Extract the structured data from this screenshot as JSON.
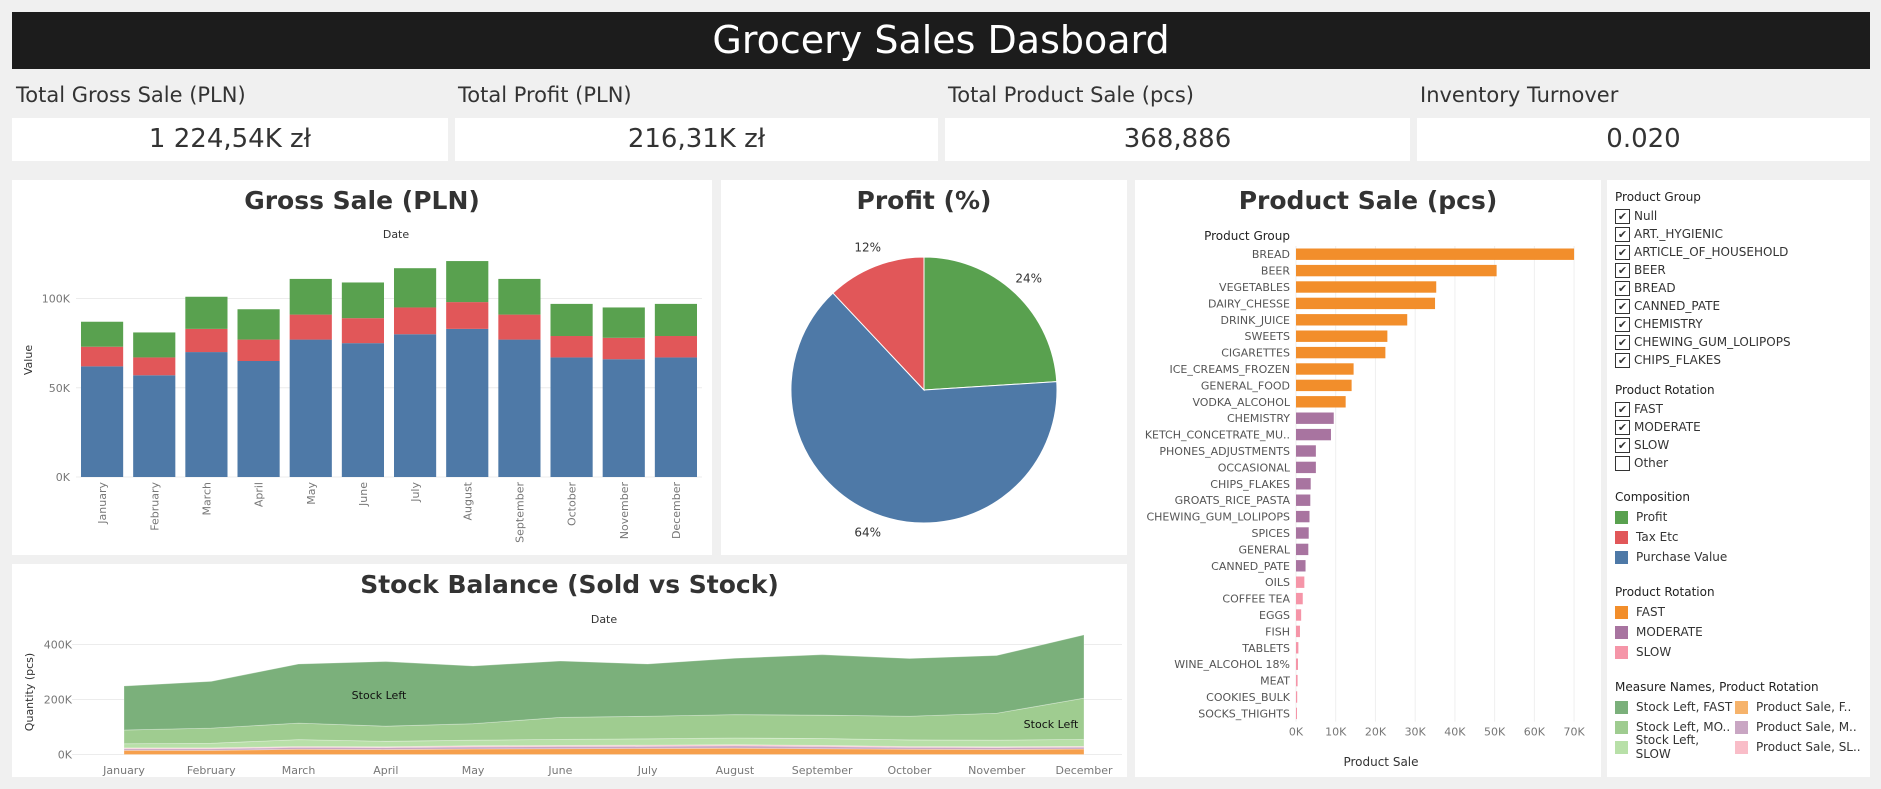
{
  "title": "Grocery Sales Dasboard",
  "kpis": [
    {
      "label": "Total Gross Sale (PLN)",
      "value": "1 224,54K zł"
    },
    {
      "label": "Total Profit (PLN)",
      "value": "216,31K zł"
    },
    {
      "label": "Total Product Sale (pcs)",
      "value": "368,886"
    },
    {
      "label": "Inventory Turnover",
      "value": "0.020"
    }
  ],
  "colors": {
    "profit": "#59a14f",
    "tax": "#e15759",
    "purchase": "#4e79a7",
    "fast": "#f28e2b",
    "moderate": "#a874a0",
    "slow": "#f595a8",
    "stock_fast": "#7bb07b",
    "stock_mod": "#9fcc90",
    "stock_slow": "#b8e0a8"
  },
  "chart_data": [
    {
      "type": "bar",
      "title": "Gross Sale (PLN)",
      "xlabel": "Date",
      "ylabel": "Value",
      "categories": [
        "January",
        "February",
        "March",
        "April",
        "May",
        "June",
        "July",
        "August",
        "September",
        "October",
        "November",
        "December"
      ],
      "yticks": [
        "0K",
        "50K",
        "100K"
      ],
      "ylim": [
        0,
        130000
      ],
      "series": [
        {
          "name": "Purchase Value",
          "values": [
            62000,
            57000,
            70000,
            65000,
            77000,
            75000,
            80000,
            83000,
            77000,
            67000,
            66000,
            67000
          ]
        },
        {
          "name": "Tax Etc",
          "values": [
            11000,
            10000,
            13000,
            12000,
            14000,
            14000,
            15000,
            15000,
            14000,
            12000,
            12000,
            12000
          ]
        },
        {
          "name": "Profit",
          "values": [
            14000,
            14000,
            18000,
            17000,
            20000,
            20000,
            22000,
            23000,
            20000,
            18000,
            17000,
            18000
          ]
        }
      ]
    },
    {
      "type": "pie",
      "title": "Profit (%)",
      "slices": [
        {
          "name": "Profit",
          "value": 24,
          "label": "24%"
        },
        {
          "name": "Purchase Value",
          "value": 64,
          "label": "64%"
        },
        {
          "name": "Tax Etc",
          "value": 12,
          "label": "12%"
        }
      ]
    },
    {
      "type": "bar",
      "title": "Product Sale (pcs)",
      "header": "Product Group",
      "xlabel": "Product Sale",
      "xticks": [
        "0K",
        "10K",
        "20K",
        "30K",
        "40K",
        "50K",
        "60K",
        "70K"
      ],
      "xlim": [
        0,
        73000
      ],
      "bars": [
        {
          "label": "BREAD",
          "value": 70000,
          "rot": "fast"
        },
        {
          "label": "BEER",
          "value": 50500,
          "rot": "fast"
        },
        {
          "label": "VEGETABLES",
          "value": 35300,
          "rot": "fast"
        },
        {
          "label": "DAIRY_CHESSE",
          "value": 35000,
          "rot": "fast"
        },
        {
          "label": "DRINK_JUICE",
          "value": 28000,
          "rot": "fast"
        },
        {
          "label": "SWEETS",
          "value": 23000,
          "rot": "fast"
        },
        {
          "label": "CIGARETTES",
          "value": 22500,
          "rot": "fast"
        },
        {
          "label": "ICE_CREAMS_FROZEN",
          "value": 14500,
          "rot": "fast"
        },
        {
          "label": "GENERAL_FOOD",
          "value": 14000,
          "rot": "fast"
        },
        {
          "label": "VODKA_ALCOHOL",
          "value": 12500,
          "rot": "fast"
        },
        {
          "label": "CHEMISTRY",
          "value": 9500,
          "rot": "moderate"
        },
        {
          "label": "KETCH_CONCETRATE_MU..",
          "value": 8800,
          "rot": "moderate"
        },
        {
          "label": "PHONES_ADJUSTMENTS",
          "value": 5000,
          "rot": "moderate"
        },
        {
          "label": "OCCASIONAL",
          "value": 5000,
          "rot": "moderate"
        },
        {
          "label": "CHIPS_FLAKES",
          "value": 3700,
          "rot": "moderate"
        },
        {
          "label": "GROATS_RICE_PASTA",
          "value": 3600,
          "rot": "moderate"
        },
        {
          "label": "CHEWING_GUM_LOLIPOPS",
          "value": 3400,
          "rot": "moderate"
        },
        {
          "label": "SPICES",
          "value": 3200,
          "rot": "moderate"
        },
        {
          "label": "GENERAL",
          "value": 3100,
          "rot": "moderate"
        },
        {
          "label": "CANNED_PATE",
          "value": 2400,
          "rot": "moderate"
        },
        {
          "label": "OILS",
          "value": 2100,
          "rot": "slow"
        },
        {
          "label": "COFFEE TEA",
          "value": 1700,
          "rot": "slow"
        },
        {
          "label": "EGGS",
          "value": 1300,
          "rot": "slow"
        },
        {
          "label": "FISH",
          "value": 1000,
          "rot": "slow"
        },
        {
          "label": "TABLETS",
          "value": 600,
          "rot": "slow"
        },
        {
          "label": "WINE_ALCOHOL 18%",
          "value": 500,
          "rot": "slow"
        },
        {
          "label": "MEAT",
          "value": 400,
          "rot": "slow"
        },
        {
          "label": "COOKIES_BULK",
          "value": 300,
          "rot": "slow"
        },
        {
          "label": "SOCKS_THIGHTS",
          "value": 200,
          "rot": "slow"
        }
      ]
    },
    {
      "type": "area",
      "title": "Stock Balance (Sold vs Stock)",
      "xlabel": "Date",
      "ylabel": "Quantity (pcs)",
      "categories": [
        "January",
        "February",
        "March",
        "April",
        "May",
        "June",
        "July",
        "August",
        "September",
        "October",
        "November",
        "December"
      ],
      "yticks": [
        "0K",
        "200K",
        "400K"
      ],
      "ylim": [
        -20000,
        460000
      ],
      "annotations": [
        "Stock Left",
        "Stock Left"
      ],
      "series": [
        {
          "name": "Product Sale, FAST",
          "values": [
            15000,
            15000,
            19000,
            18000,
            20000,
            21000,
            22000,
            23000,
            21000,
            19000,
            18000,
            20000
          ]
        },
        {
          "name": "Product Sale, MODERATE",
          "values": [
            6000,
            6000,
            7000,
            7000,
            8000,
            8000,
            8000,
            9000,
            8000,
            7000,
            7000,
            7000
          ]
        },
        {
          "name": "Product Sale, SLOW",
          "values": [
            3000,
            3000,
            3000,
            3000,
            4000,
            4000,
            4000,
            4000,
            4000,
            3000,
            3000,
            3000
          ]
        },
        {
          "name": "Stock Left, SLOW",
          "values": [
            15000,
            17000,
            25000,
            20000,
            20000,
            22000,
            23000,
            24000,
            25000,
            24000,
            24000,
            25000
          ]
        },
        {
          "name": "Stock Left, MODERATE",
          "values": [
            50000,
            55000,
            60000,
            55000,
            60000,
            80000,
            82000,
            85000,
            85000,
            86000,
            98000,
            150000
          ]
        },
        {
          "name": "Stock Left, FAST",
          "values": [
            160000,
            170000,
            215000,
            235000,
            210000,
            205000,
            190000,
            205000,
            220000,
            210000,
            210000,
            230000
          ]
        }
      ]
    }
  ],
  "filters": [
    {
      "title": "Product Group",
      "items": [
        "Null",
        "ART._HYGIENIC",
        "ARTICLE_OF_HOUSEHOLD",
        "BEER",
        "BREAD",
        "CANNED_PATE",
        "CHEMISTRY",
        "CHEWING_GUM_LOLIPOPS",
        "CHIPS_FLAKES"
      ],
      "checked": [
        true,
        true,
        true,
        true,
        true,
        true,
        true,
        true,
        true
      ]
    },
    {
      "title": "Product Rotation",
      "items": [
        "FAST",
        "MODERATE",
        "SLOW",
        "Other"
      ],
      "checked": [
        true,
        true,
        true,
        false
      ]
    }
  ],
  "legends": {
    "composition": {
      "title": "Composition",
      "items": [
        {
          "label": "Profit",
          "color": "#59a14f"
        },
        {
          "label": "Tax Etc",
          "color": "#e15759"
        },
        {
          "label": "Purchase Value",
          "color": "#4e79a7"
        }
      ]
    },
    "rotation": {
      "title": "Product Rotation",
      "items": [
        {
          "label": "FAST",
          "color": "#f28e2b"
        },
        {
          "label": "MODERATE",
          "color": "#a874a0"
        },
        {
          "label": "SLOW",
          "color": "#f595a8"
        }
      ]
    },
    "measure": {
      "title": "Measure Names, Product Rotation",
      "items": [
        {
          "label": "Stock Left, FAST",
          "color": "#7bb07b"
        },
        {
          "label": "Product Sale, F..",
          "color": "#f6b36b"
        },
        {
          "label": "Stock Left, MO..",
          "color": "#9fcc90"
        },
        {
          "label": "Product Sale, M..",
          "color": "#c9a6c3"
        },
        {
          "label": "Stock Left, SLOW",
          "color": "#b8e0a8"
        },
        {
          "label": "Product Sale, SL..",
          "color": "#f9bdc8"
        }
      ]
    }
  }
}
